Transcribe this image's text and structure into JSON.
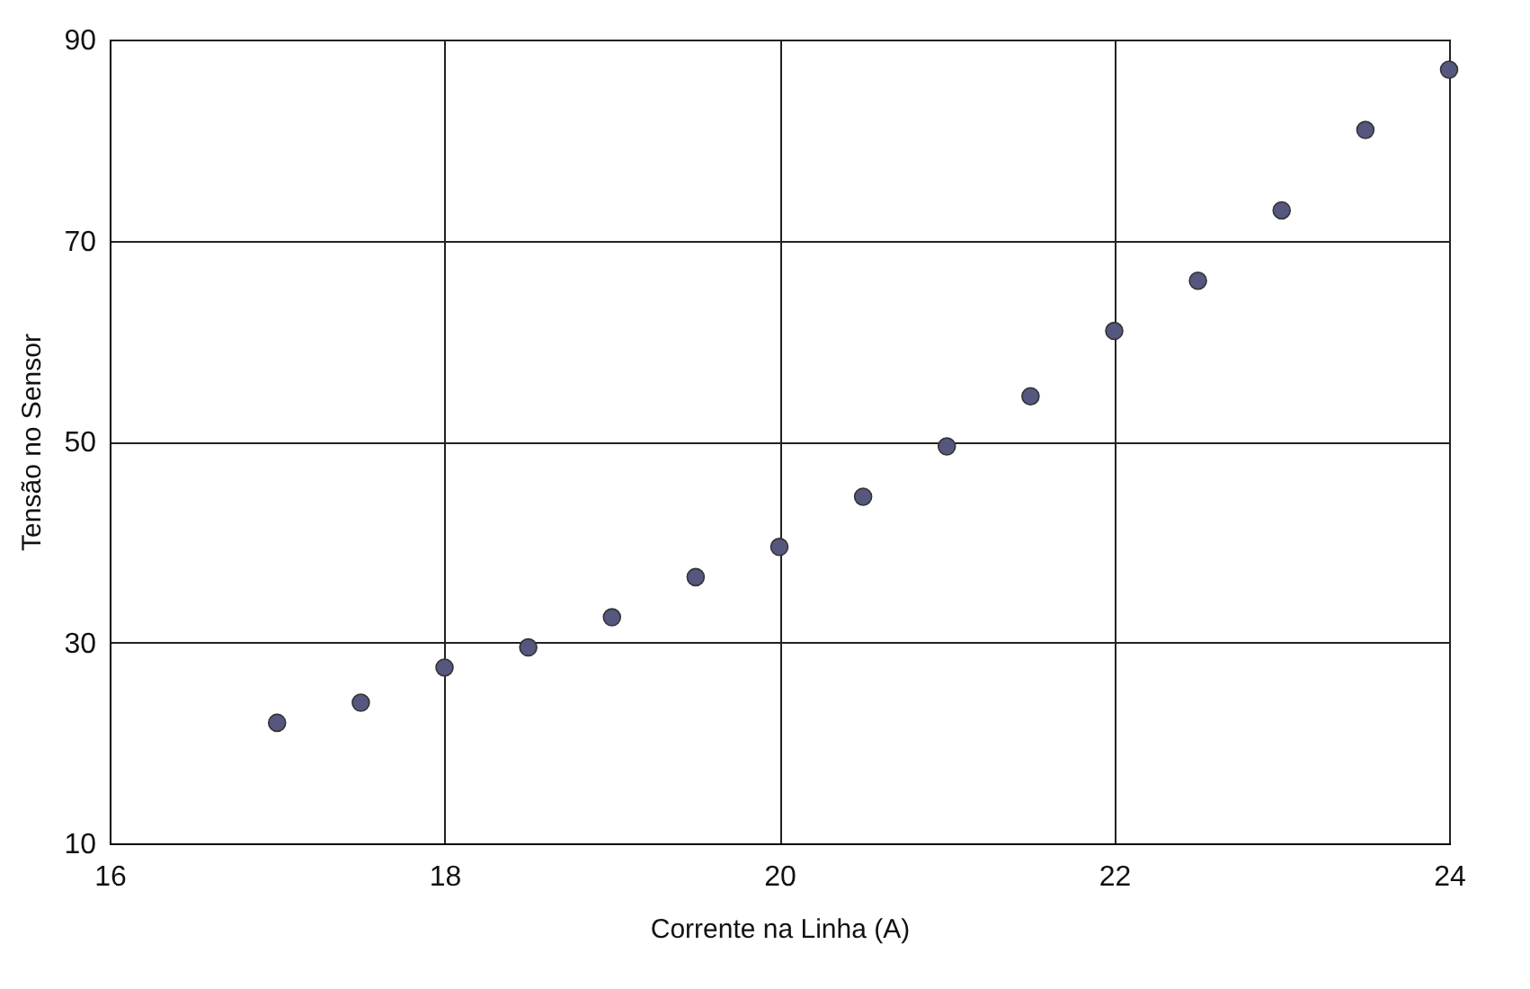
{
  "chart_data": {
    "type": "scatter",
    "xlabel": "Corrente na Linha (A)",
    "ylabel": "Tensão no Sensor",
    "x": [
      17,
      17.5,
      18,
      18.5,
      19,
      19.5,
      20,
      20.5,
      21,
      21.5,
      22,
      22.5,
      23,
      23.5,
      24
    ],
    "series": [
      {
        "color": "#55577f",
        "values": [
          22,
          24,
          27.5,
          29.5,
          32.5,
          36.5,
          39.5,
          44.5,
          49.5,
          54.5,
          61,
          66,
          73,
          81,
          87
        ]
      }
    ],
    "xlim": [
      16,
      24
    ],
    "xticks": [
      16,
      18,
      20,
      22,
      24
    ],
    "ylim": [
      10,
      90
    ],
    "yticks": [
      10,
      30,
      50,
      70,
      90
    ],
    "grid": true,
    "marker": "circle"
  }
}
